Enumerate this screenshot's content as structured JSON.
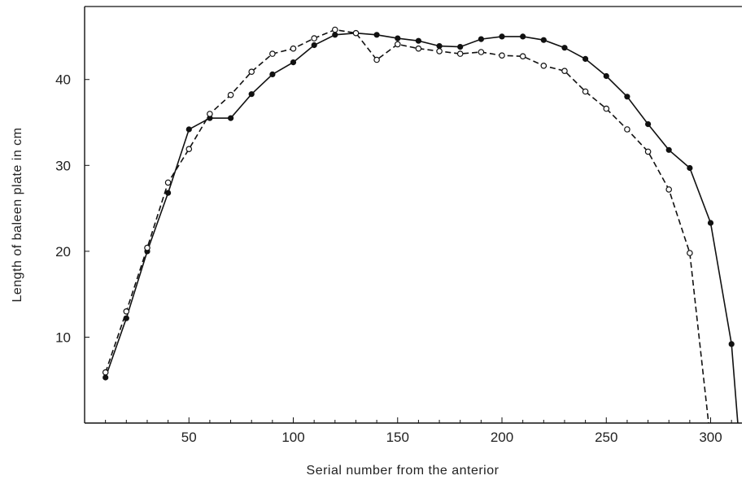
{
  "chart_data": {
    "type": "line",
    "title": "",
    "xlabel": "Serial number from the anterior",
    "ylabel": "Length of baleen plate in cm",
    "xlim": [
      0,
      315
    ],
    "ylim": [
      0,
      48.5
    ],
    "xticks": [
      50,
      100,
      150,
      200,
      250,
      300
    ],
    "yticks": [
      10,
      20,
      30,
      40
    ],
    "grid": false,
    "legend": "none",
    "series": [
      {
        "marker": "filled-circle",
        "line_style": "solid",
        "color": "#111111",
        "points": [
          [
            10,
            5.3
          ],
          [
            20,
            12.2
          ],
          [
            30,
            20.0
          ],
          [
            40,
            26.8
          ],
          [
            50,
            34.2
          ],
          [
            60,
            35.5
          ],
          [
            70,
            35.5
          ],
          [
            80,
            38.3
          ],
          [
            90,
            40.6
          ],
          [
            100,
            42.0
          ],
          [
            110,
            44.0
          ],
          [
            120,
            45.2
          ],
          [
            130,
            45.4
          ],
          [
            140,
            45.2
          ],
          [
            150,
            44.8
          ],
          [
            160,
            44.5
          ],
          [
            170,
            43.9
          ],
          [
            180,
            43.8
          ],
          [
            190,
            44.7
          ],
          [
            200,
            45.0
          ],
          [
            210,
            45.0
          ],
          [
            220,
            44.6
          ],
          [
            230,
            43.7
          ],
          [
            240,
            42.4
          ],
          [
            250,
            40.4
          ],
          [
            260,
            38.0
          ],
          [
            270,
            34.8
          ],
          [
            280,
            31.8
          ],
          [
            290,
            29.7
          ],
          [
            300,
            23.3
          ],
          [
            310,
            9.2
          ],
          [
            313,
            0
          ]
        ]
      },
      {
        "marker": "open-circle",
        "line_style": "dashed",
        "color": "#111111",
        "points": [
          [
            10,
            5.9
          ],
          [
            20,
            13.0
          ],
          [
            30,
            20.4
          ],
          [
            40,
            28.0
          ],
          [
            50,
            31.9
          ],
          [
            60,
            36.0
          ],
          [
            70,
            38.2
          ],
          [
            80,
            40.9
          ],
          [
            90,
            43.0
          ],
          [
            100,
            43.6
          ],
          [
            110,
            44.8
          ],
          [
            120,
            45.8
          ],
          [
            130,
            45.4
          ],
          [
            140,
            42.3
          ],
          [
            150,
            44.1
          ],
          [
            160,
            43.6
          ],
          [
            170,
            43.3
          ],
          [
            180,
            43.0
          ],
          [
            190,
            43.2
          ],
          [
            200,
            42.8
          ],
          [
            210,
            42.7
          ],
          [
            220,
            41.6
          ],
          [
            230,
            41.0
          ],
          [
            240,
            38.6
          ],
          [
            250,
            36.6
          ],
          [
            260,
            34.2
          ],
          [
            270,
            31.6
          ],
          [
            280,
            27.2
          ],
          [
            290,
            19.8
          ],
          [
            299,
            0
          ]
        ]
      }
    ]
  }
}
